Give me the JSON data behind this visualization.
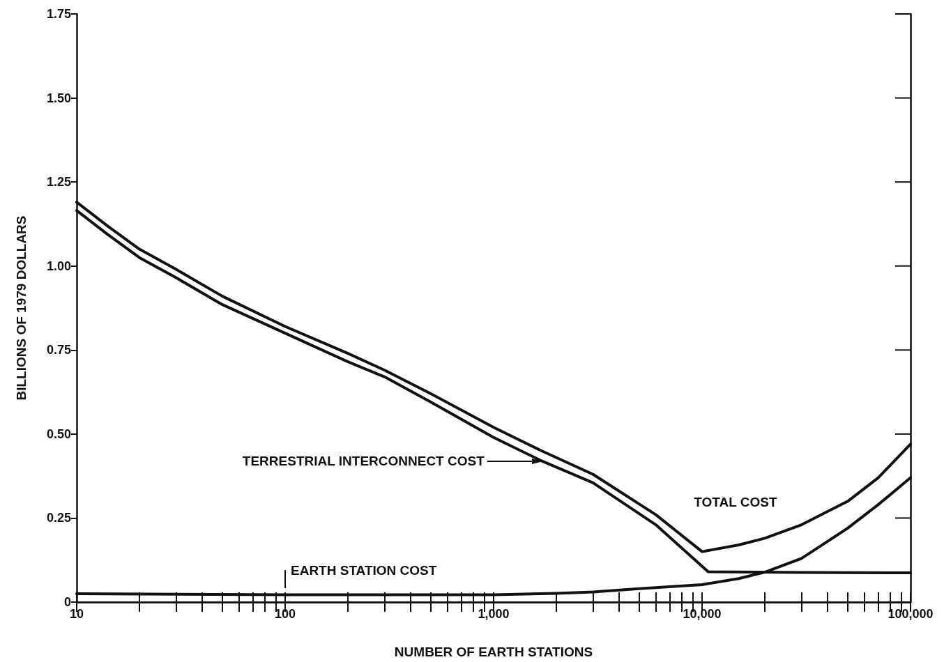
{
  "chart_data": {
    "type": "line",
    "xlabel": "NUMBER OF EARTH STATIONS",
    "ylabel": "BILLIONS OF 1979 DOLLARS",
    "log": "x",
    "grid": false,
    "marker": "none",
    "line_style": "solid",
    "xlim": [
      10,
      100000
    ],
    "ylim": [
      0,
      1.75
    ],
    "xticks": [
      {
        "value": 10,
        "label": "10"
      },
      {
        "value": 20,
        "label": null
      },
      {
        "value": 30,
        "label": null
      },
      {
        "value": 40,
        "label": null
      },
      {
        "value": 50,
        "label": null
      },
      {
        "value": 60,
        "label": null
      },
      {
        "value": 70,
        "label": null
      },
      {
        "value": 80,
        "label": null
      },
      {
        "value": 90,
        "label": null
      },
      {
        "value": 100,
        "label": "100"
      },
      {
        "value": 200,
        "label": null
      },
      {
        "value": 300,
        "label": null
      },
      {
        "value": 400,
        "label": null
      },
      {
        "value": 500,
        "label": null
      },
      {
        "value": 600,
        "label": null
      },
      {
        "value": 700,
        "label": null
      },
      {
        "value": 800,
        "label": null
      },
      {
        "value": 900,
        "label": null
      },
      {
        "value": 1000,
        "label": "1,000"
      },
      {
        "value": 2000,
        "label": null
      },
      {
        "value": 3000,
        "label": null
      },
      {
        "value": 4000,
        "label": null
      },
      {
        "value": 5000,
        "label": null
      },
      {
        "value": 6000,
        "label": null
      },
      {
        "value": 7000,
        "label": null
      },
      {
        "value": 8000,
        "label": null
      },
      {
        "value": 9000,
        "label": null
      },
      {
        "value": 10000,
        "label": "10,000"
      },
      {
        "value": 20000,
        "label": null
      },
      {
        "value": 30000,
        "label": null
      },
      {
        "value": 40000,
        "label": null
      },
      {
        "value": 50000,
        "label": null
      },
      {
        "value": 60000,
        "label": null
      },
      {
        "value": 70000,
        "label": null
      },
      {
        "value": 80000,
        "label": null
      },
      {
        "value": 90000,
        "label": null
      },
      {
        "value": 100000,
        "label": "100,000"
      }
    ],
    "yticks": [
      0,
      0.25,
      {
        "value": 0.5,
        "label": "0.50"
      },
      0.75,
      {
        "value": 1,
        "label": "1.00"
      },
      1.25,
      {
        "value": 1.5,
        "label": "1.50"
      },
      1.75
    ],
    "series": [
      {
        "color": "#111111",
        "x": [
          10,
          14,
          20,
          30,
          50,
          100,
          200,
          300,
          500,
          1000,
          1700,
          3000,
          6000,
          10000,
          15000,
          20000,
          30000,
          50000,
          70000,
          100000
        ],
        "values": [
          1.19,
          1.12,
          1.05,
          0.99,
          0.91,
          0.82,
          0.74,
          0.69,
          0.62,
          0.52,
          0.45,
          0.38,
          0.26,
          0.15,
          0.17,
          0.19,
          0.23,
          0.3,
          0.37,
          0.47
        ]
      },
      {
        "color": "#111111",
        "x": [
          10,
          14,
          20,
          30,
          50,
          100,
          200,
          300,
          500,
          1000,
          1700,
          3000,
          6000,
          10700,
          30000,
          100000
        ],
        "values": [
          1.165,
          1.095,
          1.025,
          0.965,
          0.885,
          0.8,
          0.715,
          0.67,
          0.595,
          0.49,
          0.42,
          0.355,
          0.23,
          0.09,
          0.088,
          0.087
        ]
      },
      {
        "color": "#111111",
        "x": [
          10,
          100,
          1000,
          2000,
          3000,
          5000,
          10000,
          15000,
          20000,
          30000,
          50000,
          70000,
          100000
        ],
        "values": [
          0.025,
          0.022,
          0.022,
          0.026,
          0.03,
          0.04,
          0.052,
          0.07,
          0.089,
          0.13,
          0.22,
          0.29,
          0.37
        ]
      }
    ],
    "annotations": [
      "TERRESTRIAL INTERCONNECT COST",
      "TOTAL COST",
      {
        "text": "EARTH STATION COST",
        "x": 100,
        "y": 0.025
      }
    ]
  }
}
